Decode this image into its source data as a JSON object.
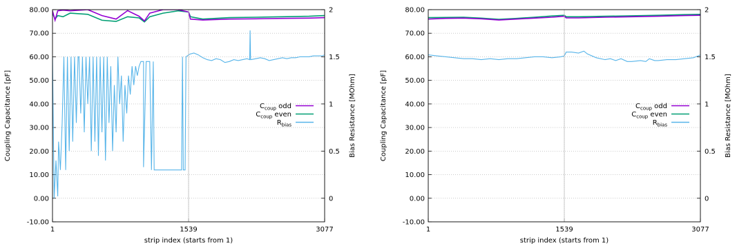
{
  "chart_data": [
    {
      "type": "line",
      "x_ticks": [
        "1",
        "1539",
        "3077"
      ],
      "x_range": [
        1,
        3077
      ],
      "xlabel": "strip index (starts from 1)",
      "ylabel": "Coupling Capacitance [pF]",
      "ylim": [
        -10,
        80
      ],
      "y_ticks": [
        "-10.00",
        "0.00",
        "10.00",
        "20.00",
        "30.00",
        "40.00",
        "50.00",
        "60.00",
        "70.00",
        "80.00"
      ],
      "y2label": "Bias Resistance [MOhm]",
      "y2lim": [
        -0.25,
        2
      ],
      "y2_ticks": [
        "0",
        "0.5",
        "1",
        "1.5",
        "2"
      ],
      "grid": true,
      "legend_position": "right-center",
      "series": [
        {
          "name": "odd",
          "name_main": "C",
          "name_sub": "coup",
          "axis": "left",
          "color": "#9400d3",
          "x": [
            1,
            30,
            60,
            120,
            200,
            400,
            560,
            720,
            850,
            980,
            1040,
            1100,
            1250,
            1420,
            1539,
            1560,
            1700,
            2000,
            2300,
            2600,
            2900,
            3077
          ],
          "y": [
            79.5,
            75.5,
            79.5,
            79.8,
            79.5,
            80.0,
            77.5,
            76.0,
            79.6,
            77.2,
            75.2,
            78.5,
            80.0,
            80.0,
            79.0,
            76.0,
            75.6,
            76.0,
            76.1,
            76.3,
            76.4,
            76.6
          ]
        },
        {
          "name": "even",
          "name_main": "C",
          "name_sub": "coup",
          "axis": "left",
          "color": "#009e73",
          "x": [
            1,
            30,
            60,
            120,
            200,
            400,
            560,
            720,
            850,
            980,
            1040,
            1100,
            1250,
            1420,
            1539,
            1560,
            1700,
            2000,
            2300,
            2600,
            2900,
            3077
          ],
          "y": [
            78.5,
            76.0,
            77.5,
            77.0,
            78.5,
            78.0,
            75.5,
            75.0,
            77.0,
            76.5,
            74.8,
            77.0,
            78.5,
            79.5,
            79.0,
            77.0,
            76.0,
            76.6,
            76.8,
            77.0,
            77.2,
            77.5
          ]
        },
        {
          "name": "",
          "name_main": "R",
          "name_sub": "bias",
          "axis": "right",
          "color": "#56b4e9",
          "x": [
            1,
            20,
            40,
            60,
            70,
            90,
            110,
            130,
            150,
            170,
            190,
            210,
            230,
            250,
            270,
            290,
            300,
            320,
            340,
            360,
            380,
            400,
            420,
            440,
            460,
            480,
            500,
            520,
            540,
            560,
            580,
            600,
            620,
            640,
            660,
            680,
            700,
            720,
            740,
            760,
            780,
            800,
            820,
            840,
            860,
            880,
            900,
            920,
            940,
            960,
            980,
            1000,
            1030,
            1030,
            1060,
            1100,
            1120,
            1140,
            1150,
            1170,
            1200,
            1250,
            1300,
            1350,
            1400,
            1430,
            1440,
            1460,
            1470,
            1480,
            1500,
            1510,
            1539,
            1560,
            1600,
            1650,
            1700,
            1750,
            1800,
            1850,
            1900,
            1950,
            2000,
            2050,
            2100,
            2150,
            2200,
            2230,
            2235,
            2240,
            2245,
            2300,
            2350,
            2400,
            2450,
            2500,
            2550,
            2600,
            2650,
            2700,
            2750,
            2800,
            2850,
            2900,
            2950,
            3000,
            3050,
            3077
          ],
          "y": [
            1.5,
            0.0,
            0.4,
            0.02,
            0.6,
            0.3,
            0.8,
            1.5,
            0.3,
            1.5,
            0.5,
            1.5,
            0.6,
            1.5,
            0.8,
            1.5,
            1.5,
            0.9,
            1.5,
            0.7,
            1.5,
            1.0,
            1.5,
            0.5,
            1.5,
            0.6,
            1.5,
            0.45,
            1.5,
            0.7,
            1.5,
            0.4,
            1.5,
            0.8,
            1.4,
            0.5,
            1.2,
            0.7,
            1.5,
            1.0,
            1.3,
            0.6,
            1.2,
            0.9,
            1.3,
            1.1,
            1.4,
            1.2,
            1.4,
            1.3,
            1.4,
            1.45,
            1.45,
            0.33,
            1.45,
            1.45,
            0.3,
            1.45,
            0.3,
            0.3,
            0.3,
            0.3,
            0.3,
            0.3,
            0.3,
            0.3,
            0.3,
            0.3,
            1.5,
            0.3,
            0.3,
            1.5,
            1.52,
            1.53,
            1.54,
            1.52,
            1.49,
            1.47,
            1.46,
            1.48,
            1.47,
            1.44,
            1.45,
            1.47,
            1.46,
            1.47,
            1.48,
            1.47,
            1.78,
            1.47,
            1.47,
            1.48,
            1.49,
            1.48,
            1.46,
            1.47,
            1.48,
            1.49,
            1.48,
            1.49,
            1.49,
            1.5,
            1.5,
            1.5,
            1.51,
            1.51,
            1.51,
            1.52
          ]
        }
      ],
      "annotations": [
        {
          "type": "vertical-line",
          "x": 1539
        }
      ]
    },
    {
      "type": "line",
      "x_ticks": [
        "1",
        "1539",
        "3077"
      ],
      "x_range": [
        1,
        3077
      ],
      "xlabel": "strip index (starts from 1)",
      "ylabel": "Coupling Capacitance [pF]",
      "ylim": [
        -10,
        80
      ],
      "y_ticks": [
        "-10.00",
        "0.00",
        "10.00",
        "20.00",
        "30.00",
        "40.00",
        "50.00",
        "60.00",
        "70.00",
        "80.00"
      ],
      "y2label": "Bias Resistance [MOhm]",
      "y2lim": [
        -0.25,
        2
      ],
      "y2_ticks": [
        "0",
        "0.5",
        "1",
        "1.5",
        "2"
      ],
      "grid": true,
      "legend_position": "right-center",
      "series": [
        {
          "name": "odd",
          "name_main": "C",
          "name_sub": "coup",
          "axis": "left",
          "color": "#9400d3",
          "x": [
            1,
            200,
            400,
            600,
            800,
            1000,
            1200,
            1400,
            1539,
            1560,
            1700,
            2000,
            2300,
            2600,
            2900,
            3077
          ],
          "y": [
            76.0,
            76.3,
            76.4,
            76.1,
            75.6,
            76.0,
            76.4,
            76.8,
            77.2,
            76.5,
            76.5,
            76.8,
            77.0,
            77.2,
            77.5,
            77.6
          ]
        },
        {
          "name": "even",
          "name_main": "C",
          "name_sub": "coup",
          "axis": "left",
          "color": "#009e73",
          "x": [
            1,
            200,
            400,
            600,
            800,
            1000,
            1200,
            1400,
            1539,
            1560,
            1700,
            2000,
            2300,
            2600,
            2900,
            3077
          ],
          "y": [
            76.6,
            76.7,
            76.8,
            76.4,
            75.9,
            76.3,
            76.8,
            77.3,
            77.6,
            77.0,
            77.0,
            77.2,
            77.4,
            77.6,
            77.9,
            78.0
          ]
        },
        {
          "name": "",
          "name_main": "R",
          "name_sub": "bias",
          "axis": "right",
          "color": "#56b4e9",
          "x": [
            1,
            100,
            200,
            300,
            400,
            500,
            600,
            700,
            800,
            900,
            1000,
            1100,
            1200,
            1300,
            1400,
            1500,
            1539,
            1560,
            1620,
            1700,
            1760,
            1800,
            1900,
            2000,
            2060,
            2120,
            2180,
            2250,
            2300,
            2400,
            2460,
            2500,
            2560,
            2600,
            2700,
            2800,
            2900,
            3000,
            3077
          ],
          "y": [
            1.52,
            1.51,
            1.5,
            1.49,
            1.48,
            1.48,
            1.47,
            1.48,
            1.47,
            1.48,
            1.48,
            1.49,
            1.5,
            1.5,
            1.49,
            1.5,
            1.51,
            1.55,
            1.55,
            1.54,
            1.56,
            1.53,
            1.49,
            1.47,
            1.48,
            1.46,
            1.48,
            1.45,
            1.45,
            1.46,
            1.45,
            1.48,
            1.46,
            1.46,
            1.47,
            1.47,
            1.48,
            1.49,
            1.52
          ]
        }
      ],
      "annotations": [
        {
          "type": "vertical-line",
          "x": 1539
        }
      ]
    }
  ]
}
